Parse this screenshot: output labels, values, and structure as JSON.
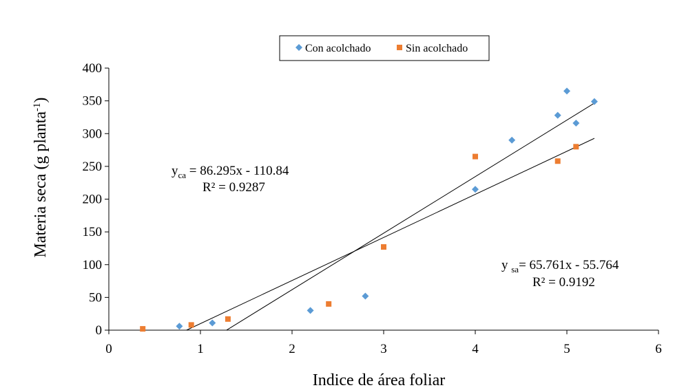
{
  "chart_data": {
    "type": "scatter",
    "title": "",
    "xlabel": "Indice de área foliar",
    "ylabel": {
      "main": "Materia seca (g planta",
      "sup": "-1",
      "close": ")"
    },
    "xlim": [
      0,
      6
    ],
    "ylim": [
      0,
      400
    ],
    "xticks": [
      "0",
      "1",
      "2",
      "3",
      "4",
      "5",
      "6"
    ],
    "yticks": [
      "0",
      "50",
      "100",
      "150",
      "200",
      "250",
      "300",
      "350",
      "400"
    ],
    "grid": false,
    "legend_position": "top",
    "series": [
      {
        "name": "Con acolchado",
        "marker": "diamond",
        "color": "#5B9BD5",
        "x": [
          0.77,
          1.13,
          2.2,
          2.8,
          4.0,
          4.4,
          4.9,
          5.0,
          5.1,
          5.3
        ],
        "y": [
          6,
          11,
          30,
          52,
          215,
          290,
          328,
          365,
          316,
          349
        ],
        "trendline": {
          "slope": 86.295,
          "intercept": -110.84,
          "x_range": [
            1.284,
            5.3
          ],
          "eq_sym": "y",
          "eq_sub": "ca",
          "eq_rest": " = 86.295x - 110.84",
          "r2": "R² = 0.9287"
        }
      },
      {
        "name": "Sin acolchado",
        "marker": "square",
        "color": "#ED7D31",
        "x": [
          0.37,
          0.9,
          1.3,
          2.4,
          3.0,
          4.0,
          4.9,
          5.1
        ],
        "y": [
          2,
          8,
          17,
          40,
          127,
          265,
          258,
          280
        ],
        "trendline": {
          "slope": 65.761,
          "intercept": -55.764,
          "x_range": [
            0.848,
            5.3
          ],
          "eq_sym": "y ",
          "eq_sub": "sa",
          "eq_rest": "= 65.761x - 55.764",
          "r2": "R² = 0.9192"
        }
      }
    ]
  }
}
